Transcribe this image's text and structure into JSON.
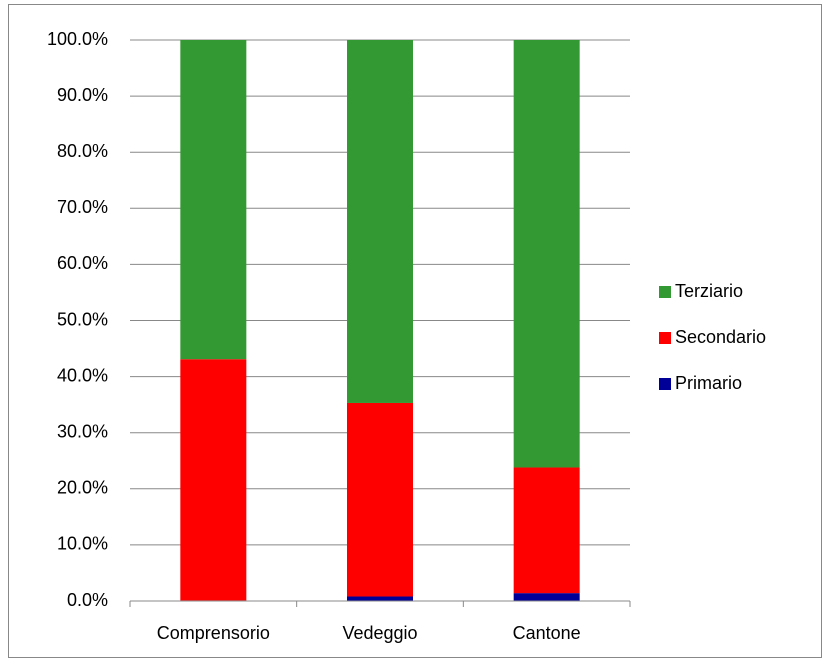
{
  "chart_data": {
    "type": "stacked_bar",
    "categories": [
      "Comprensorio",
      "Vedeggio",
      "Cantone"
    ],
    "series": [
      {
        "name": "Primario",
        "color": "#000099",
        "values": [
          0.1,
          0.8,
          1.4
        ]
      },
      {
        "name": "Secondario",
        "color": "#ff0000",
        "values": [
          43.0,
          34.5,
          22.4
        ]
      },
      {
        "name": "Terziario",
        "color": "#339933",
        "values": [
          56.9,
          64.7,
          76.2
        ]
      }
    ],
    "ylim": [
      0,
      100
    ],
    "yticks": [
      {
        "value": 0,
        "label": "0.0%"
      },
      {
        "value": 10,
        "label": "10.0%"
      },
      {
        "value": 20,
        "label": "20.0%"
      },
      {
        "value": 30,
        "label": "30.0%"
      },
      {
        "value": 40,
        "label": "40.0%"
      },
      {
        "value": 50,
        "label": "50.0%"
      },
      {
        "value": 60,
        "label": "60.0%"
      },
      {
        "value": 70,
        "label": "70.0%"
      },
      {
        "value": 80,
        "label": "80.0%"
      },
      {
        "value": 90,
        "label": "90.0%"
      },
      {
        "value": 100,
        "label": "100.0%"
      }
    ],
    "grid": true,
    "legend": "right"
  }
}
